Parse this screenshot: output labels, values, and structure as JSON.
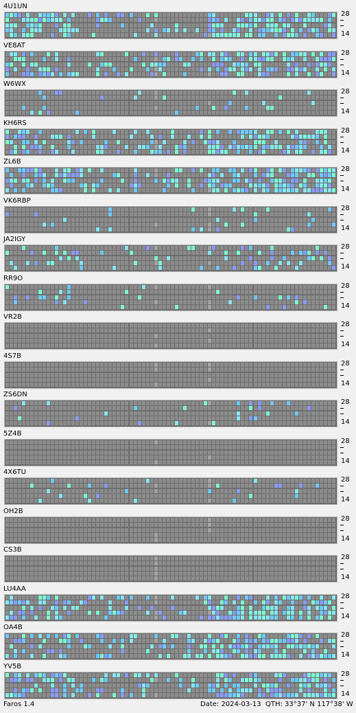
{
  "beacons": [
    {
      "call": "4U1UN",
      "band_hi": "28",
      "band_lo": "14",
      "activity": "heavy"
    },
    {
      "call": "VE8AT",
      "band_hi": "28",
      "band_lo": "14",
      "activity": "heavy"
    },
    {
      "call": "W6WX",
      "band_hi": "28",
      "band_lo": "14",
      "activity": "light"
    },
    {
      "call": "KH6RS",
      "band_hi": "28",
      "band_lo": "14",
      "activity": "heavy"
    },
    {
      "call": "ZL6B",
      "band_hi": "28",
      "band_lo": "14",
      "activity": "heavy"
    },
    {
      "call": "VK6RBP",
      "band_hi": "28",
      "band_lo": "14",
      "activity": "light"
    },
    {
      "call": "JA2IGY",
      "band_hi": "28",
      "band_lo": "14",
      "activity": "medium"
    },
    {
      "call": "RR9O",
      "band_hi": "28",
      "band_lo": "14",
      "activity": "light"
    },
    {
      "call": "VR2B",
      "band_hi": "28",
      "band_lo": "14",
      "activity": "none"
    },
    {
      "call": "4S7B",
      "band_hi": "28",
      "band_lo": "14",
      "activity": "none"
    },
    {
      "call": "ZS6DN",
      "band_hi": "28",
      "band_lo": "14",
      "activity": "light"
    },
    {
      "call": "5Z4B",
      "band_hi": "28",
      "band_lo": "14",
      "activity": "none"
    },
    {
      "call": "4X6TU",
      "band_hi": "28",
      "band_lo": "14",
      "activity": "light"
    },
    {
      "call": "OH2B",
      "band_hi": "28",
      "band_lo": "14",
      "activity": "none"
    },
    {
      "call": "CS3B",
      "band_hi": "28",
      "band_lo": "14",
      "activity": "none"
    },
    {
      "call": "LU4AA",
      "band_hi": "28",
      "band_lo": "14",
      "activity": "heavy"
    },
    {
      "call": "OA4B",
      "band_hi": "28",
      "band_lo": "14",
      "activity": "heavy"
    },
    {
      "call": "YV5B",
      "band_hi": "28",
      "band_lo": "14",
      "activity": "heavy"
    }
  ],
  "status": {
    "app": "Faros 1.4",
    "date": "Date: 2024-03-13",
    "qth": "QTH: 33°37' N  117°38' W"
  },
  "colors": {
    "background": "#f0f0f0",
    "grid_bg": "#6d6d6d",
    "cell_empty": "#8c8c8c",
    "cell_strong": "#7fffd4",
    "cell_good": "#87e6f0",
    "cell_medium": "#6ecbff",
    "cell_weak": "#8a9cff",
    "cell_faint": "#a4a4a4"
  }
}
